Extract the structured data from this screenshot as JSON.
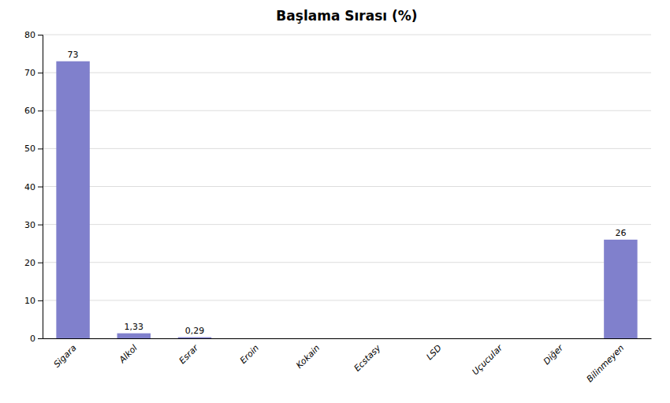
{
  "chart_data": {
    "type": "bar",
    "title": "Başlama Sırası (%)",
    "categories": [
      "Sigara",
      "Alkol",
      "Esrar",
      "Eroin",
      "Kokain",
      "Ecstasy",
      "LSD",
      "Uçucular",
      "Diğer",
      "Bilinmeyen"
    ],
    "values": [
      73,
      1.33,
      0.29,
      0,
      0,
      0,
      0,
      0,
      0,
      26
    ],
    "value_labels": [
      "73",
      "1,33",
      "0,29",
      null,
      null,
      null,
      null,
      null,
      null,
      "26"
    ],
    "color": "#8080cc",
    "ylim": [
      0,
      80
    ],
    "yticks": [
      0,
      10,
      20,
      30,
      40,
      50,
      60,
      70,
      80
    ],
    "grid": true
  }
}
